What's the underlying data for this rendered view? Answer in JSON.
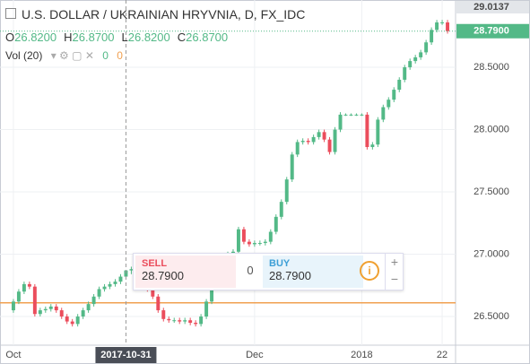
{
  "header": {
    "symbol": "U.S. DOLLAR / UKRAINIAN HRYVNIA, D, FX_IDC",
    "ohlc": [
      {
        "key": "O",
        "value": "26.8200"
      },
      {
        "key": "H",
        "value": "26.8700"
      },
      {
        "key": "L",
        "value": "26.8200"
      },
      {
        "key": "C",
        "value": "26.8700"
      }
    ],
    "indicator": "Vol (20)",
    "indicator_values": [
      "0",
      "0"
    ]
  },
  "trade": {
    "sell_label": "SELL",
    "sell_price": "28.7900",
    "spread": "0",
    "buy_label": "BUY",
    "buy_price": "28.7900"
  },
  "chart_data": {
    "type": "candlestick",
    "open": [
      26.55,
      26.62,
      26.7,
      26.76,
      26.74,
      26.52,
      26.55,
      26.56,
      26.58,
      26.55,
      26.5,
      26.46,
      26.44,
      26.5,
      26.55,
      26.6,
      26.66,
      26.72,
      26.74,
      26.76,
      26.78,
      26.82,
      26.87,
      26.88,
      26.84,
      26.78,
      26.72,
      26.66,
      26.55,
      26.48,
      26.47,
      26.47,
      26.46,
      26.47,
      26.45,
      26.44,
      26.5,
      26.62,
      26.74,
      26.85,
      26.95,
      27.0,
      27.02,
      27.2,
      27.1,
      27.08,
      27.09,
      27.09,
      27.1,
      27.18,
      27.3,
      27.42,
      27.6,
      27.8,
      27.9,
      27.91,
      27.9,
      27.94,
      27.98,
      27.92,
      27.82,
      28.0,
      28.12,
      28.12,
      28.12,
      28.12,
      28.12,
      27.86,
      27.88,
      28.08,
      28.18,
      28.24,
      28.32,
      28.4,
      28.5,
      28.55,
      28.58,
      28.62,
      28.7,
      28.8,
      28.86,
      28.86
    ],
    "high": [
      26.64,
      26.72,
      26.78,
      26.78,
      26.76,
      26.57,
      26.58,
      26.6,
      26.6,
      26.57,
      26.52,
      26.48,
      26.52,
      26.57,
      26.62,
      26.68,
      26.74,
      26.76,
      26.78,
      26.8,
      26.84,
      26.87,
      26.9,
      26.9,
      26.86,
      26.8,
      26.74,
      26.68,
      26.57,
      26.5,
      26.49,
      26.49,
      26.49,
      26.49,
      26.47,
      26.52,
      26.64,
      26.76,
      26.87,
      26.97,
      27.02,
      27.04,
      27.22,
      27.22,
      27.12,
      27.11,
      27.11,
      27.12,
      27.2,
      27.32,
      27.44,
      27.62,
      27.82,
      27.92,
      27.93,
      27.93,
      27.96,
      28.0,
      28.0,
      27.94,
      28.02,
      28.14,
      28.13,
      28.13,
      28.13,
      28.13,
      28.14,
      27.9,
      28.1,
      28.2,
      28.26,
      28.34,
      28.42,
      28.52,
      28.57,
      28.6,
      28.64,
      28.72,
      28.82,
      28.88,
      28.88,
      28.88
    ],
    "low": [
      26.53,
      26.6,
      26.68,
      26.72,
      26.5,
      26.5,
      26.53,
      26.54,
      26.53,
      26.48,
      26.44,
      26.42,
      26.42,
      26.48,
      26.53,
      26.58,
      26.64,
      26.7,
      26.72,
      26.74,
      26.76,
      26.82,
      26.84,
      26.82,
      26.76,
      26.7,
      26.64,
      26.53,
      26.46,
      26.45,
      26.45,
      26.44,
      26.44,
      26.43,
      26.42,
      26.42,
      26.48,
      26.6,
      26.72,
      26.83,
      26.93,
      26.98,
      27.0,
      27.08,
      27.06,
      27.06,
      27.07,
      27.07,
      27.08,
      27.16,
      27.28,
      27.4,
      27.58,
      27.78,
      27.88,
      27.88,
      27.88,
      27.92,
      27.9,
      27.8,
      27.8,
      27.98,
      28.11,
      28.11,
      28.11,
      28.11,
      27.84,
      27.84,
      27.86,
      28.06,
      28.16,
      28.22,
      28.3,
      28.38,
      28.48,
      28.53,
      28.56,
      28.6,
      28.68,
      28.78,
      28.84,
      28.77
    ],
    "close": [
      26.62,
      26.7,
      26.76,
      26.74,
      26.52,
      26.55,
      26.56,
      26.58,
      26.55,
      26.5,
      26.46,
      26.44,
      26.5,
      26.55,
      26.6,
      26.66,
      26.72,
      26.74,
      26.76,
      26.78,
      26.82,
      26.87,
      26.88,
      26.84,
      26.78,
      26.72,
      26.66,
      26.55,
      26.48,
      26.47,
      26.47,
      26.46,
      26.47,
      26.45,
      26.44,
      26.5,
      26.62,
      26.74,
      26.85,
      26.95,
      27.0,
      27.02,
      27.2,
      27.1,
      27.08,
      27.09,
      27.09,
      27.1,
      27.18,
      27.3,
      27.42,
      27.6,
      27.8,
      27.9,
      27.91,
      27.9,
      27.94,
      27.98,
      27.92,
      27.82,
      28.0,
      28.12,
      28.12,
      28.12,
      28.12,
      28.12,
      27.86,
      27.88,
      28.08,
      28.18,
      28.24,
      28.32,
      28.4,
      28.5,
      28.55,
      28.58,
      28.62,
      28.7,
      28.8,
      28.86,
      28.86,
      28.79
    ],
    "up_color": "#53b987",
    "down_color": "#eb4d5c",
    "xlim": [
      -2.5,
      82.5
    ],
    "xticks": [
      {
        "value": 0,
        "label": "Oct"
      },
      {
        "value": 45,
        "label": "Dec"
      },
      {
        "value": 65,
        "label": "2018"
      },
      {
        "value": 80,
        "label": "22"
      }
    ],
    "ylim": [
      26.27,
      29.04
    ],
    "yticks": [
      {
        "value": 26.5,
        "label": "26.5000"
      },
      {
        "value": 27,
        "label": "27.0000"
      },
      {
        "value": 27.5,
        "label": "27.5000"
      },
      {
        "value": 28,
        "label": "28.0000"
      },
      {
        "value": 28.5,
        "label": "28.5000"
      }
    ],
    "grid": true,
    "crosshair": {
      "value": 21,
      "label": "2017-10-31"
    },
    "last_price": {
      "value": 28.79,
      "label": "28.7900"
    },
    "top_price": {
      "value": 29.0137,
      "label": "29.0137"
    },
    "hline": {
      "value": 26.61,
      "color": "#f0a050"
    }
  }
}
